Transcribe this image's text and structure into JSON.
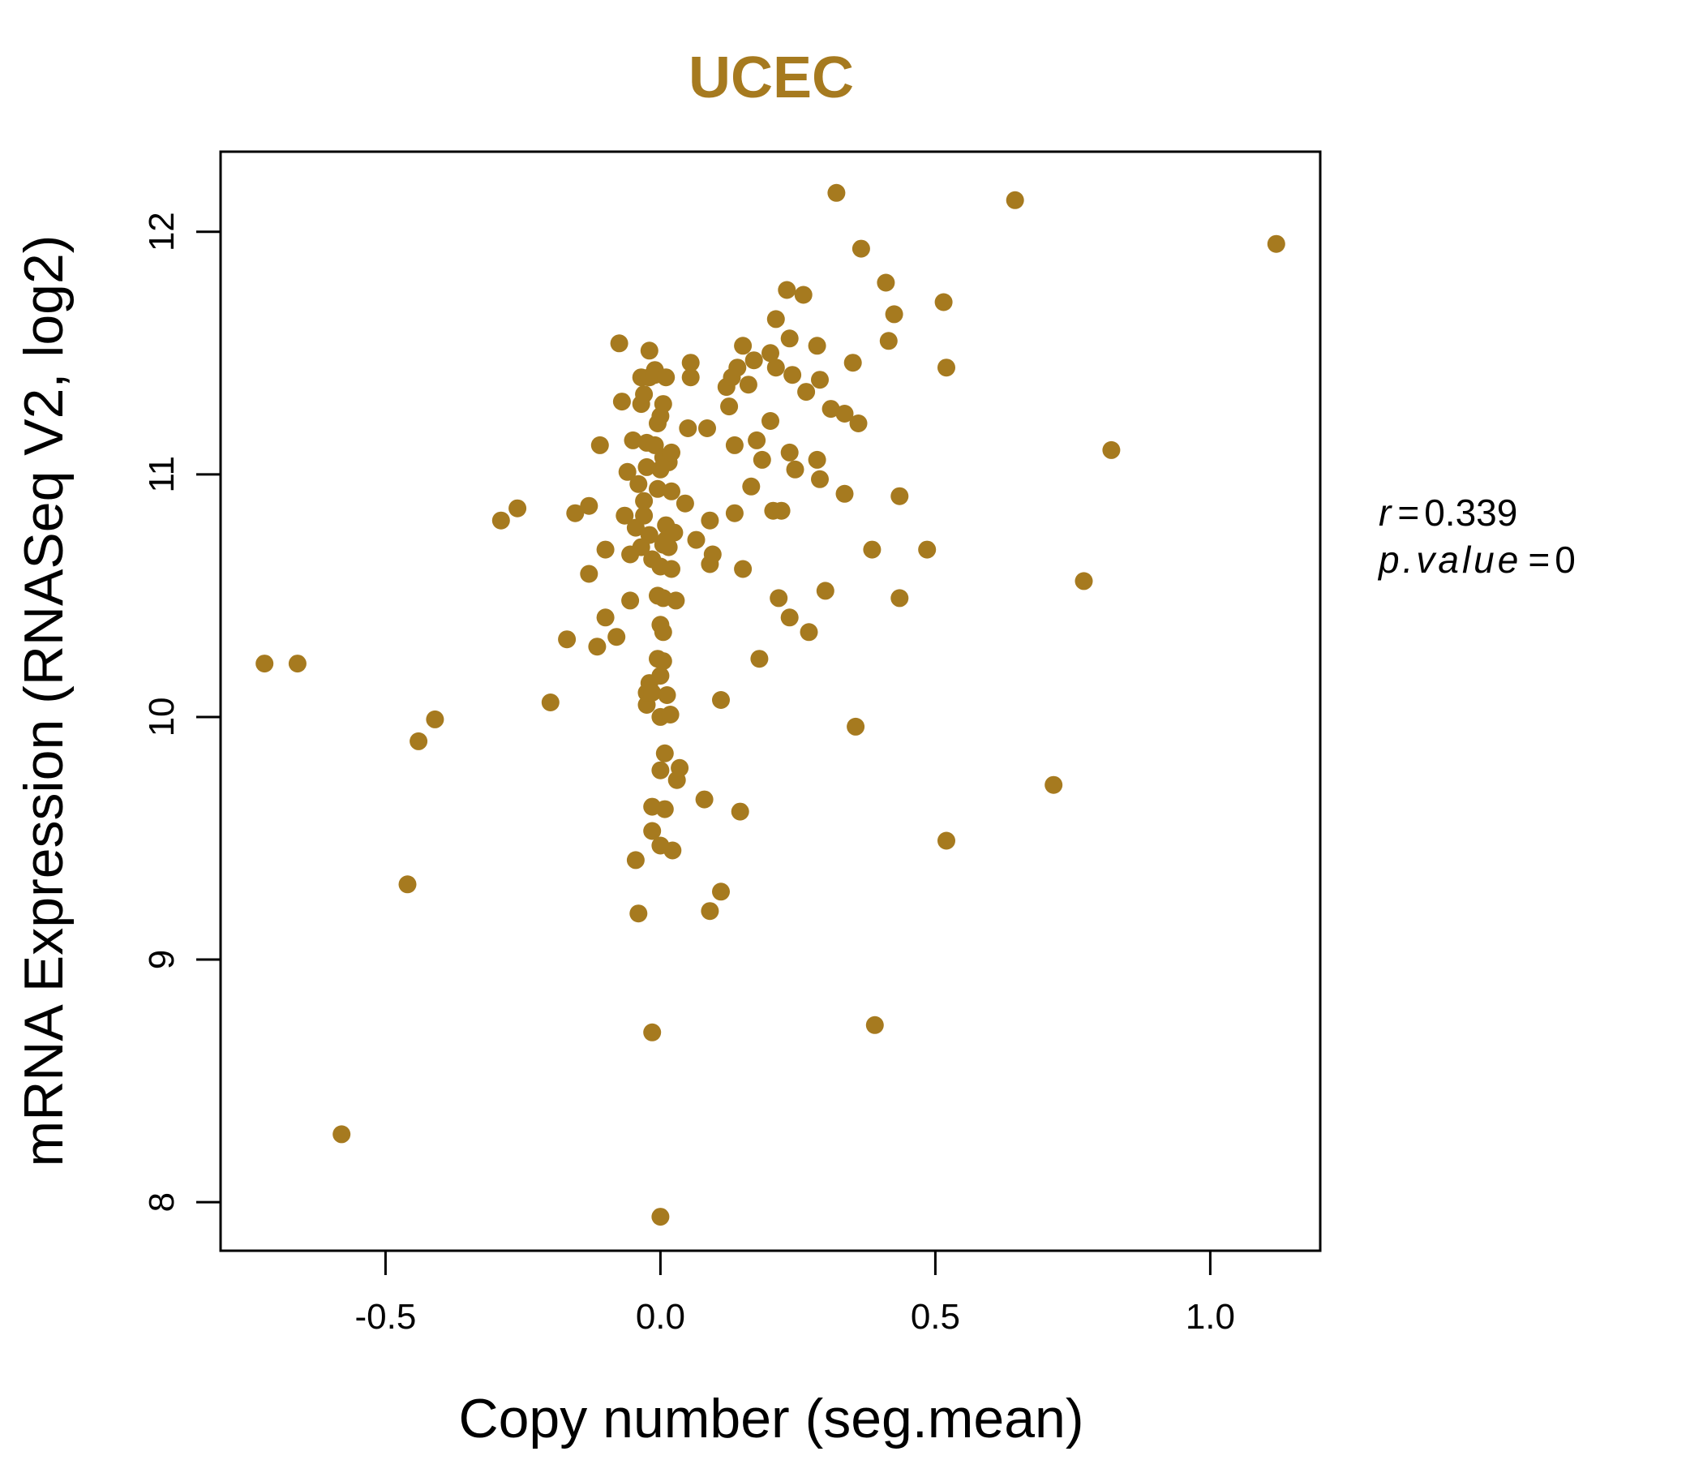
{
  "chart_data": {
    "type": "scatter",
    "title": "UCEC",
    "xlabel": "Copy number (seg.mean)",
    "ylabel": "mRNA Expression (RNASeq V2, log2)",
    "xlim": [
      -0.8,
      1.2
    ],
    "ylim": [
      7.8,
      12.33
    ],
    "x_ticks": [
      -0.5,
      0.0,
      0.5,
      1.0
    ],
    "x_tick_labels": [
      "-0.5",
      "0.0",
      "0.5",
      "1.0"
    ],
    "y_ticks": [
      8,
      9,
      10,
      11,
      12
    ],
    "y_tick_labels": [
      "8",
      "9",
      "10",
      "11",
      "12"
    ],
    "grid": false,
    "point_color": "#A67A1F",
    "stats": {
      "r_label": "r",
      "r_value": "0.339",
      "p_label": "p.value",
      "p_value": "0"
    },
    "points": [
      [
        -0.72,
        10.22
      ],
      [
        -0.66,
        10.22
      ],
      [
        -0.58,
        8.28
      ],
      [
        -0.46,
        9.31
      ],
      [
        -0.44,
        9.9
      ],
      [
        -0.41,
        9.99
      ],
      [
        -0.29,
        10.81
      ],
      [
        -0.26,
        10.86
      ],
      [
        -0.2,
        10.06
      ],
      [
        -0.17,
        10.32
      ],
      [
        -0.155,
        10.84
      ],
      [
        -0.13,
        10.87
      ],
      [
        -0.13,
        10.59
      ],
      [
        -0.115,
        10.29
      ],
      [
        -0.11,
        11.12
      ],
      [
        -0.1,
        10.41
      ],
      [
        -0.1,
        10.69
      ],
      [
        -0.08,
        10.33
      ],
      [
        -0.075,
        11.54
      ],
      [
        -0.07,
        11.3
      ],
      [
        -0.065,
        10.83
      ],
      [
        -0.06,
        11.01
      ],
      [
        -0.055,
        10.48
      ],
      [
        -0.055,
        10.67
      ],
      [
        -0.05,
        11.14
      ],
      [
        -0.045,
        9.41
      ],
      [
        -0.045,
        10.78
      ],
      [
        -0.04,
        10.96
      ],
      [
        -0.04,
        9.19
      ],
      [
        -0.035,
        10.7
      ],
      [
        -0.035,
        11.29
      ],
      [
        -0.035,
        11.4
      ],
      [
        -0.03,
        10.83
      ],
      [
        -0.03,
        11.33
      ],
      [
        -0.03,
        10.89
      ],
      [
        -0.025,
        11.13
      ],
      [
        -0.025,
        11.03
      ],
      [
        -0.025,
        10.05
      ],
      [
        -0.025,
        10.1
      ],
      [
        -0.02,
        11.4
      ],
      [
        -0.02,
        10.14
      ],
      [
        -0.02,
        10.75
      ],
      [
        -0.02,
        11.51
      ],
      [
        -0.015,
        10.1
      ],
      [
        -0.015,
        10.65
      ],
      [
        -0.015,
        9.63
      ],
      [
        -0.015,
        9.53
      ],
      [
        -0.015,
        8.7
      ],
      [
        -0.01,
        11.43
      ],
      [
        -0.01,
        11.41
      ],
      [
        -0.01,
        11.12
      ],
      [
        -0.005,
        10.94
      ],
      [
        -0.005,
        10.24
      ],
      [
        -0.005,
        10.5
      ],
      [
        -0.005,
        11.21
      ],
      [
        0.0,
        11.24
      ],
      [
        0.0,
        10.38
      ],
      [
        0.0,
        11.02
      ],
      [
        0.0,
        10.62
      ],
      [
        0.0,
        10.17
      ],
      [
        0.0,
        7.94
      ],
      [
        0.0,
        9.47
      ],
      [
        0.0,
        9.78
      ],
      [
        0.0,
        10.0
      ],
      [
        0.005,
        11.29
      ],
      [
        0.005,
        10.49
      ],
      [
        0.005,
        11.07
      ],
      [
        0.005,
        10.71
      ],
      [
        0.005,
        10.23
      ],
      [
        0.005,
        10.35
      ],
      [
        0.008,
        9.85
      ],
      [
        0.008,
        9.62
      ],
      [
        0.01,
        10.79
      ],
      [
        0.01,
        11.4
      ],
      [
        0.01,
        10.73
      ],
      [
        0.012,
        10.09
      ],
      [
        0.015,
        11.05
      ],
      [
        0.015,
        10.7
      ],
      [
        0.018,
        10.01
      ],
      [
        0.02,
        11.09
      ],
      [
        0.02,
        10.93
      ],
      [
        0.02,
        10.61
      ],
      [
        0.022,
        9.45
      ],
      [
        0.025,
        10.76
      ],
      [
        0.028,
        10.48
      ],
      [
        0.03,
        9.74
      ],
      [
        0.035,
        9.79
      ],
      [
        0.045,
        10.88
      ],
      [
        0.05,
        11.19
      ],
      [
        0.055,
        11.4
      ],
      [
        0.055,
        11.46
      ],
      [
        0.065,
        10.73
      ],
      [
        0.08,
        9.66
      ],
      [
        0.085,
        11.19
      ],
      [
        0.09,
        10.81
      ],
      [
        0.09,
        9.2
      ],
      [
        0.09,
        10.63
      ],
      [
        0.095,
        10.67
      ],
      [
        0.11,
        10.07
      ],
      [
        0.11,
        9.28
      ],
      [
        0.12,
        11.36
      ],
      [
        0.125,
        11.28
      ],
      [
        0.13,
        11.4
      ],
      [
        0.135,
        11.12
      ],
      [
        0.135,
        10.84
      ],
      [
        0.14,
        11.44
      ],
      [
        0.145,
        9.61
      ],
      [
        0.15,
        11.53
      ],
      [
        0.15,
        10.61
      ],
      [
        0.16,
        11.37
      ],
      [
        0.165,
        10.95
      ],
      [
        0.17,
        11.47
      ],
      [
        0.175,
        11.14
      ],
      [
        0.18,
        10.24
      ],
      [
        0.185,
        11.06
      ],
      [
        0.2,
        11.22
      ],
      [
        0.2,
        11.5
      ],
      [
        0.205,
        10.85
      ],
      [
        0.21,
        11.64
      ],
      [
        0.21,
        11.44
      ],
      [
        0.215,
        10.49
      ],
      [
        0.22,
        10.85
      ],
      [
        0.23,
        11.76
      ],
      [
        0.235,
        11.56
      ],
      [
        0.235,
        10.41
      ],
      [
        0.235,
        11.09
      ],
      [
        0.24,
        11.41
      ],
      [
        0.245,
        11.02
      ],
      [
        0.26,
        11.74
      ],
      [
        0.265,
        11.34
      ],
      [
        0.27,
        10.35
      ],
      [
        0.285,
        11.06
      ],
      [
        0.285,
        11.53
      ],
      [
        0.29,
        10.98
      ],
      [
        0.29,
        11.39
      ],
      [
        0.3,
        10.52
      ],
      [
        0.31,
        11.27
      ],
      [
        0.32,
        12.16
      ],
      [
        0.335,
        10.92
      ],
      [
        0.335,
        11.25
      ],
      [
        0.35,
        11.46
      ],
      [
        0.355,
        9.96
      ],
      [
        0.36,
        11.21
      ],
      [
        0.365,
        11.93
      ],
      [
        0.385,
        10.69
      ],
      [
        0.39,
        8.73
      ],
      [
        0.41,
        11.79
      ],
      [
        0.415,
        11.55
      ],
      [
        0.425,
        11.66
      ],
      [
        0.435,
        10.91
      ],
      [
        0.435,
        10.49
      ],
      [
        0.485,
        10.69
      ],
      [
        0.515,
        11.71
      ],
      [
        0.52,
        11.44
      ],
      [
        0.52,
        9.49
      ],
      [
        0.645,
        12.13
      ],
      [
        0.715,
        9.72
      ],
      [
        0.77,
        10.56
      ],
      [
        0.82,
        11.1
      ],
      [
        1.12,
        11.95
      ]
    ]
  }
}
